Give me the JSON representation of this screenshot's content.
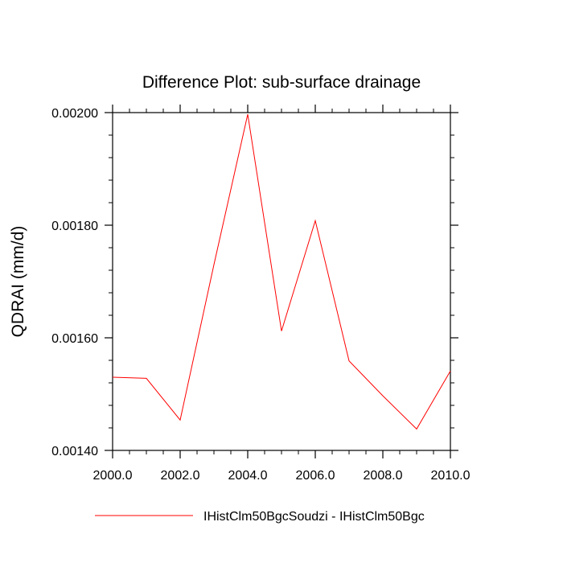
{
  "chart_data": {
    "type": "line",
    "title": "Difference Plot: sub-surface drainage",
    "xlabel": "",
    "ylabel": "QDRAI  (mm/d)",
    "xlim": [
      2000,
      2010
    ],
    "ylim": [
      0.0014,
      0.002
    ],
    "grid": false,
    "legend_position": "bottom",
    "x_ticks": [
      2000,
      2002,
      2004,
      2006,
      2008,
      2010
    ],
    "x_tick_labels": [
      "2000.0",
      "2002.0",
      "2004.0",
      "2006.0",
      "2008.0",
      "2010.0"
    ],
    "y_ticks": [
      0.0014,
      0.0016,
      0.0018,
      0.002
    ],
    "y_tick_labels": [
      "0.00140",
      "0.00160",
      "0.00180",
      "0.00200"
    ],
    "series": [
      {
        "name": "IHistClm50BgcSoudzi - IHistClm50Bgc",
        "color": "#ff0000",
        "x": [
          2000,
          2001,
          2002,
          2003,
          2004,
          2005,
          2006,
          2007,
          2008,
          2009,
          2010
        ],
        "y": [
          0.00153,
          0.001528,
          0.001454,
          0.00173,
          0.001997,
          0.001612,
          0.001808,
          0.001559,
          0.001497,
          0.001438,
          0.001541
        ]
      }
    ]
  }
}
